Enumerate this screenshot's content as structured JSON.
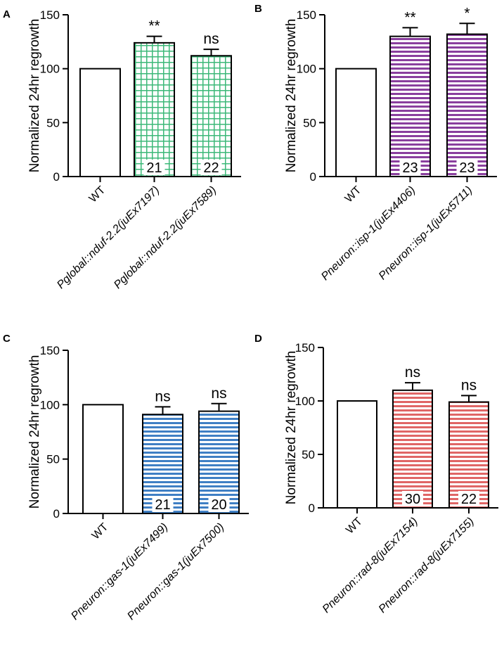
{
  "chart_data": [
    {
      "panel": "A",
      "type": "bar",
      "ylabel": "Normalized 24hr regrowth",
      "ylim": [
        0,
        150
      ],
      "yticks": [
        0,
        50,
        100,
        150
      ],
      "categories": [
        "WT",
        "Pglobal::nduf-2.2(juEx7197)",
        "Pglobal::nduf-2.2(juEx7589)"
      ],
      "values": [
        100,
        124,
        112
      ],
      "errors": [
        0,
        6,
        6
      ],
      "significance": [
        "",
        "**",
        "ns"
      ],
      "n_labels": [
        "",
        "21",
        "22"
      ],
      "pattern": "grid",
      "color": "#3cb878"
    },
    {
      "panel": "B",
      "type": "bar",
      "ylabel": "Normalized 24hr regrowth",
      "ylim": [
        0,
        150
      ],
      "yticks": [
        0,
        50,
        100,
        150
      ],
      "categories": [
        "WT",
        "Pneuron::isp-1(juEx4406)",
        "Pneuron::isp-1(juEx5711)"
      ],
      "values": [
        100,
        130,
        132
      ],
      "errors": [
        0,
        8,
        10
      ],
      "significance": [
        "",
        "**",
        "*"
      ],
      "n_labels": [
        "",
        "23",
        "23"
      ],
      "pattern": "stripes",
      "color": "#8a3f9e"
    },
    {
      "panel": "C",
      "type": "bar",
      "ylabel": "Normalized 24hr regrowth",
      "ylim": [
        0,
        150
      ],
      "yticks": [
        0,
        50,
        100,
        150
      ],
      "categories": [
        "WT",
        "Pneuron::gas-1(juEx7499)",
        "Pneuron::gas-1(juEx7500)"
      ],
      "values": [
        100,
        91,
        94
      ],
      "errors": [
        0,
        7,
        7
      ],
      "significance": [
        "",
        "ns",
        "ns"
      ],
      "n_labels": [
        "",
        "21",
        "20"
      ],
      "pattern": "stripes",
      "color": "#3f7fc4"
    },
    {
      "panel": "D",
      "type": "bar",
      "ylabel": "Normalized 24hr regrowth",
      "ylim": [
        0,
        150
      ],
      "yticks": [
        0,
        50,
        100,
        150
      ],
      "categories": [
        "WT",
        "Pneuron::rad-8(juEx7154)",
        "Pneuron::rad-8(juEx7155)"
      ],
      "values": [
        100,
        110,
        99
      ],
      "errors": [
        0,
        7,
        6
      ],
      "significance": [
        "",
        "ns",
        "ns"
      ],
      "n_labels": [
        "",
        "30",
        "22"
      ],
      "pattern": "stripes",
      "color": "#e06666"
    }
  ]
}
